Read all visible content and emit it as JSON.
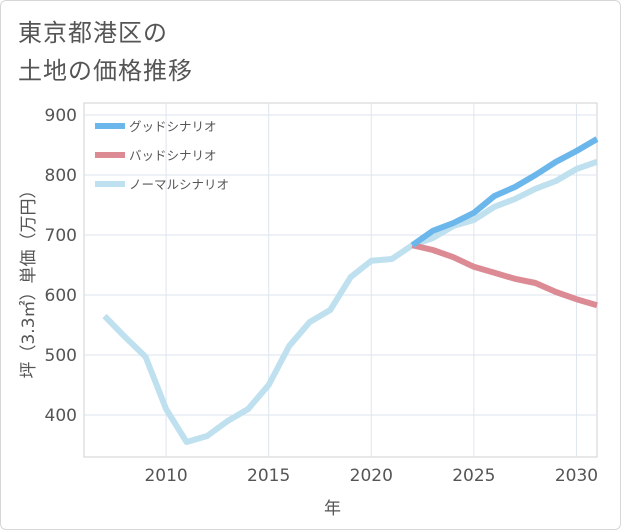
{
  "title": "東京都港区の\n土地の価格推移",
  "chart_data": {
    "type": "line",
    "title": "東京都港区の土地の価格推移",
    "xlabel": "年",
    "ylabel": "坪（3.3㎡）単価（万円）",
    "xlim": [
      2006,
      2031
    ],
    "ylim": [
      330,
      920
    ],
    "xticks": [
      2010,
      2015,
      2020,
      2025,
      2030
    ],
    "yticks": [
      400,
      500,
      600,
      700,
      800,
      900
    ],
    "grid": true,
    "legend": "top-left",
    "series": [
      {
        "name": "グッドシナリオ",
        "color": "#6bb7eb",
        "x": [
          2022,
          2023,
          2024,
          2025,
          2026,
          2027,
          2028,
          2029,
          2030,
          2031
        ],
        "y": [
          683,
          707,
          720,
          737,
          765,
          780,
          800,
          822,
          840,
          860
        ]
      },
      {
        "name": "バッドシナリオ",
        "color": "#dc8a93",
        "x": [
          2022,
          2023,
          2024,
          2025,
          2026,
          2027,
          2028,
          2029,
          2030,
          2031
        ],
        "y": [
          683,
          675,
          663,
          647,
          637,
          627,
          620,
          605,
          593,
          583
        ]
      },
      {
        "name": "ノーマルシナリオ",
        "color": "#bfe0ef",
        "x": [
          2007,
          2008,
          2009,
          2010,
          2011,
          2012,
          2013,
          2014,
          2015,
          2016,
          2017,
          2018,
          2019,
          2020,
          2021,
          2022,
          2023,
          2024,
          2025,
          2026,
          2027,
          2028,
          2029,
          2030,
          2031
        ],
        "y": [
          565,
          530,
          497,
          410,
          355,
          365,
          390,
          410,
          450,
          515,
          555,
          575,
          630,
          657,
          660,
          683,
          695,
          715,
          725,
          747,
          760,
          777,
          790,
          810,
          822
        ]
      }
    ]
  }
}
